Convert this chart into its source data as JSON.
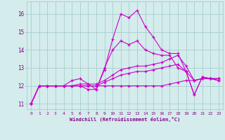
{
  "bg_color": "#d4ecec",
  "line_color": "#cc00cc",
  "grid_color": "#a0c8c8",
  "xlabel": "Windchill (Refroidissement éolien,°C)",
  "tick_color": "#880088",
  "xlim": [
    -0.5,
    23.5
  ],
  "ylim": [
    10.7,
    16.7
  ],
  "yticks": [
    11,
    12,
    13,
    14,
    15,
    16
  ],
  "xticks": [
    0,
    1,
    2,
    3,
    4,
    5,
    6,
    7,
    8,
    9,
    10,
    11,
    12,
    13,
    14,
    15,
    16,
    17,
    18,
    19,
    20,
    21,
    22,
    23
  ],
  "lines": [
    [
      11.0,
      12.0,
      12.0,
      12.0,
      12.0,
      12.0,
      12.0,
      11.8,
      11.8,
      12.9,
      14.6,
      16.0,
      15.8,
      16.2,
      15.3,
      14.7,
      14.0,
      13.8,
      13.8,
      12.8,
      11.5,
      12.5,
      12.4,
      12.3
    ],
    [
      11.0,
      12.0,
      12.0,
      12.0,
      12.0,
      12.0,
      12.0,
      12.0,
      12.0,
      12.0,
      12.0,
      12.0,
      12.0,
      12.0,
      12.0,
      12.0,
      12.0,
      12.1,
      12.2,
      12.3,
      12.3,
      12.4,
      12.4,
      12.4
    ],
    [
      11.0,
      12.0,
      12.0,
      12.0,
      12.0,
      12.0,
      12.0,
      12.0,
      12.0,
      12.2,
      12.4,
      12.6,
      12.7,
      12.8,
      12.8,
      12.9,
      13.0,
      13.1,
      13.2,
      12.8,
      12.3,
      12.4,
      12.4,
      12.4
    ],
    [
      11.0,
      12.0,
      12.0,
      12.0,
      12.0,
      12.0,
      12.1,
      12.1,
      12.1,
      12.3,
      12.6,
      12.9,
      13.0,
      13.1,
      13.1,
      13.2,
      13.3,
      13.5,
      13.7,
      13.1,
      12.3,
      12.4,
      12.4,
      12.4
    ],
    [
      11.0,
      12.0,
      12.0,
      12.0,
      12.0,
      12.3,
      12.4,
      12.1,
      11.8,
      13.0,
      14.0,
      14.5,
      14.3,
      14.5,
      14.0,
      13.8,
      13.7,
      13.7,
      13.0,
      12.8,
      11.5,
      12.5,
      12.4,
      12.3
    ]
  ]
}
